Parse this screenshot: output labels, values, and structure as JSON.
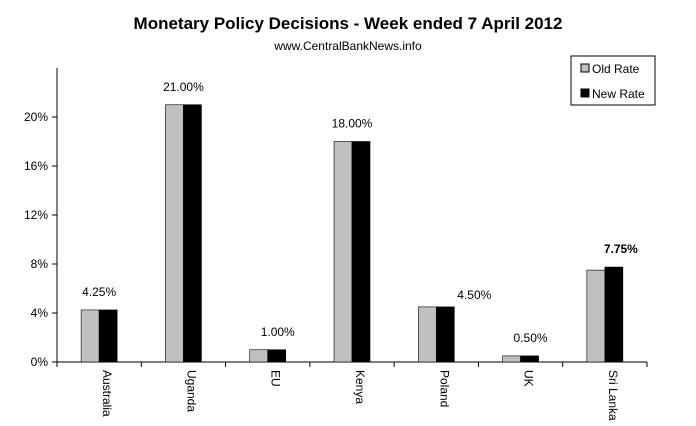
{
  "chart_data": {
    "type": "bar",
    "title": "Monetary Policy Decisions - Week ended 7 April 2012",
    "subtitle": "www.CentralBankNews.info",
    "categories": [
      "Australia",
      "Uganda",
      "EU",
      "Kenya",
      "Poland",
      "UK",
      "Sri Lanka"
    ],
    "series": [
      {
        "name": "Old Rate",
        "color": "#c0c0c0",
        "values": [
          4.25,
          21.0,
          1.0,
          18.0,
          4.5,
          0.5,
          7.5
        ]
      },
      {
        "name": "New Rate",
        "color": "#000000",
        "values": [
          4.25,
          21.0,
          1.0,
          18.0,
          4.5,
          0.5,
          7.75
        ]
      }
    ],
    "data_labels": [
      "4.25%",
      "21.00%",
      "1.00%",
      "18.00%",
      "4.50%",
      "0.50%",
      "7.75%"
    ],
    "data_labels_bold": [
      false,
      false,
      false,
      false,
      false,
      false,
      true
    ],
    "yticks": [
      "0%",
      "4%",
      "8%",
      "12%",
      "16%",
      "20%"
    ],
    "ytick_values": [
      0,
      4,
      8,
      12,
      16,
      20
    ],
    "ylim": [
      0,
      24
    ],
    "xlabel": "",
    "ylabel": "",
    "grid": false,
    "legend_position": "top-right"
  }
}
